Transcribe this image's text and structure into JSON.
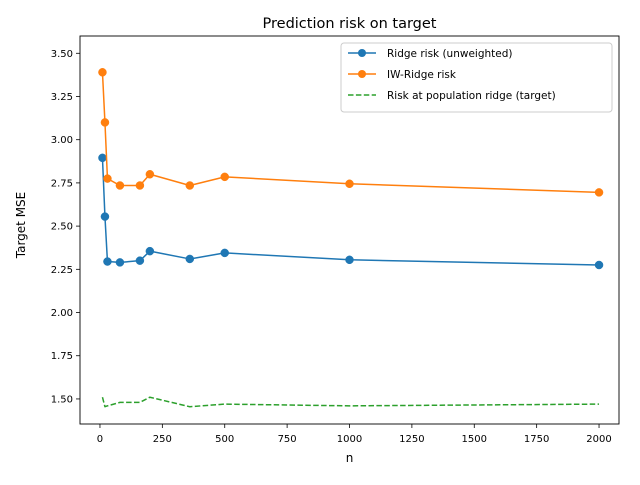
{
  "chart_data": {
    "type": "line",
    "title": "Prediction risk on target",
    "xlabel": "n",
    "ylabel": "Target MSE",
    "xlim": [
      -80,
      2080
    ],
    "ylim": [
      1.355,
      3.6
    ],
    "x_ticks": [
      0,
      250,
      500,
      750,
      1000,
      1250,
      1500,
      1750,
      2000
    ],
    "x_tick_labels": [
      "0",
      "250",
      "500",
      "750",
      "1000",
      "1250",
      "1500",
      "1750",
      "2000"
    ],
    "y_ticks": [
      1.5,
      1.75,
      2.0,
      2.25,
      2.5,
      2.75,
      3.0,
      3.25,
      3.5
    ],
    "y_tick_labels": [
      "1.50",
      "1.75",
      "2.00",
      "2.25",
      "2.50",
      "2.75",
      "3.00",
      "3.25",
      "3.50"
    ],
    "grid": false,
    "legend_position": "top-right",
    "series": [
      {
        "name": "Ridge risk (unweighted)",
        "color": "#1f77b4",
        "style": "solid",
        "marker": "circle",
        "x": [
          10,
          20,
          30,
          80,
          160,
          200,
          360,
          500,
          1000,
          2000
        ],
        "y": [
          2.895,
          2.555,
          2.295,
          2.29,
          2.3,
          2.355,
          2.31,
          2.345,
          2.305,
          2.275
        ]
      },
      {
        "name": "IW-Ridge risk",
        "color": "#ff7f0e",
        "style": "solid",
        "marker": "circle",
        "x": [
          10,
          20,
          30,
          80,
          160,
          200,
          360,
          500,
          1000,
          2000
        ],
        "y": [
          3.39,
          3.1,
          2.775,
          2.735,
          2.735,
          2.8,
          2.735,
          2.785,
          2.745,
          2.695
        ]
      },
      {
        "name": "Risk at population ridge (target)",
        "color": "#2ca02c",
        "style": "dashed",
        "marker": "none",
        "x": [
          10,
          20,
          30,
          80,
          160,
          200,
          360,
          500,
          1000,
          2000
        ],
        "y": [
          1.51,
          1.455,
          1.46,
          1.48,
          1.48,
          1.51,
          1.455,
          1.47,
          1.46,
          1.47
        ]
      }
    ]
  }
}
